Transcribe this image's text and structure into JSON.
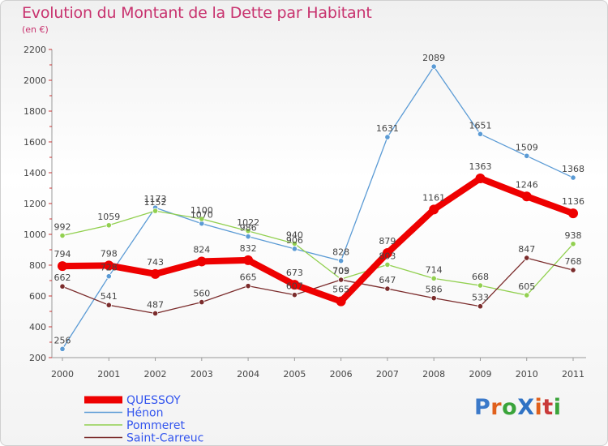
{
  "title": "Evolution du Montant de la Dette par Habitant",
  "subtitle": "(en €)",
  "brand": {
    "text": "ProXiti",
    "colors": [
      "#3b79c9",
      "#e0601c",
      "#3aa43a",
      "#2f72c4",
      "#e0601c",
      "#c93a3a",
      "#3aa43a"
    ]
  },
  "chart_data": {
    "type": "line",
    "x": [
      "2000",
      "2001",
      "2002",
      "2003",
      "2004",
      "2005",
      "2006",
      "2007",
      "2008",
      "2009",
      "2010",
      "2011"
    ],
    "y_ticks": [
      200,
      400,
      600,
      800,
      1000,
      1200,
      1400,
      1600,
      1800,
      2000,
      2200
    ],
    "ylim": [
      200,
      2200
    ],
    "grid": false,
    "legend_position": "bottom-left",
    "series": [
      {
        "name": "Hénon",
        "color": "#5b9bd5",
        "values": [
          256,
          728,
          1173,
          1070,
          986,
          906,
          828,
          1631,
          2089,
          1651,
          1509,
          1368
        ],
        "labels": [
          "256",
          "728",
          "1173",
          "1070",
          "986",
          "906",
          "828",
          "1631",
          "2089",
          "1651",
          "1509",
          "1368"
        ]
      },
      {
        "name": "Pommeret",
        "color": "#92d050",
        "values": [
          992,
          1059,
          1152,
          1100,
          1022,
          940,
          709,
          803,
          714,
          668,
          605,
          938
        ],
        "labels": [
          "992",
          "1059",
          "1152",
          "1100",
          "1022",
          "940",
          "709",
          "803",
          "714",
          "668",
          "605",
          "938"
        ]
      },
      {
        "name": "Saint-Carreuc",
        "color": "#7b2c2c",
        "values": [
          662,
          541,
          487,
          560,
          665,
          607,
          705,
          647,
          586,
          533,
          847,
          768
        ],
        "labels": [
          "662",
          "541",
          "487",
          "560",
          "665",
          "607",
          "705",
          "647",
          "586",
          "533",
          "847",
          "768"
        ]
      },
      {
        "name": "QUESSOY",
        "color": "#ee0000",
        "values": [
          794,
          798,
          743,
          824,
          832,
          673,
          565,
          879,
          1161,
          1363,
          1246,
          1136
        ],
        "labels": [
          "794",
          "798",
          "743",
          "824",
          "832",
          "673",
          "565",
          "879",
          "1161",
          "1363",
          "1246",
          "1136"
        ]
      }
    ],
    "legend": [
      {
        "name": "QUESSOY",
        "color": "#ee0000",
        "text_color": "#3355ee",
        "weight": "thick"
      },
      {
        "name": "Hénon",
        "color": "#5b9bd5",
        "text_color": "#3355ee",
        "weight": "thin"
      },
      {
        "name": "Pommeret",
        "color": "#92d050",
        "text_color": "#3355ee",
        "weight": "thin"
      },
      {
        "name": "Saint-Carreuc",
        "color": "#7b2c2c",
        "text_color": "#3355ee",
        "weight": "thin"
      }
    ]
  }
}
